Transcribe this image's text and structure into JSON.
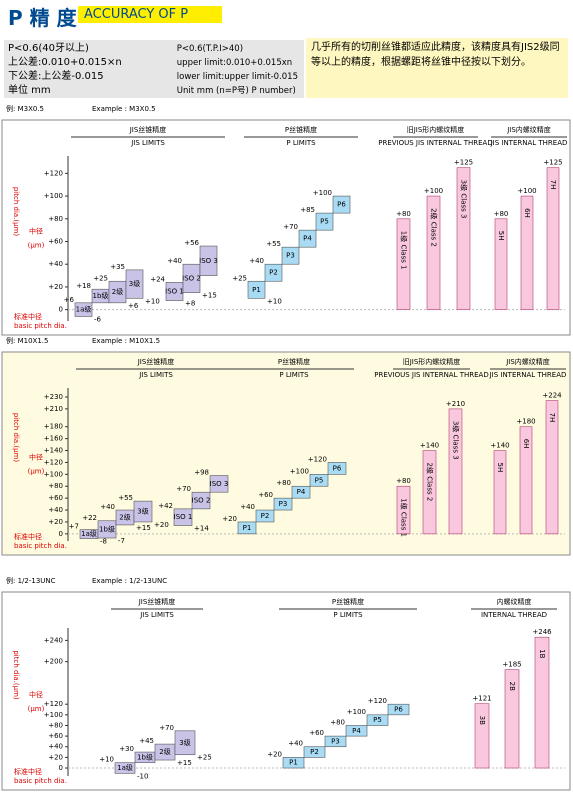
{
  "header": {
    "title": "P 精 度",
    "badge": "ACCURACY OF P"
  },
  "spec": {
    "cn": [
      "P<0.6(40牙以上)",
      "上公差:0.010+0.015×n",
      "下公差:上公差-0.015",
      "单位 mm"
    ],
    "en": [
      "P<0.6(T.P.I>40)",
      "upper limit:0.010+0.015xn",
      "lower limit:upper limit-0.015",
      "Unit mm (n=P号) P number)"
    ],
    "note": "几乎所有的切削丝锥都适应此精度，该精度具有JIS2级同等以上的精度，根据螺距将丝锥中径按以下划分。"
  },
  "chart_data": [
    {
      "type": "tolerance",
      "example_cn": "例: M3X0.5",
      "example_en": "Example : M3X0.5",
      "axis_title_cn": "中径",
      "axis_unit": "(μm)",
      "axis_title": "pitch dia.(μm)",
      "baseline_cn": "标准中径",
      "baseline_en": "basic pitch dia.",
      "ylim": [
        -10,
        130
      ],
      "yticks": [
        0,
        {
          "value": 20,
          "label": "+20"
        },
        {
          "value": 40,
          "label": "+40"
        },
        {
          "value": 60,
          "label": "+60"
        },
        {
          "value": 80,
          "label": "+80"
        },
        {
          "value": 100,
          "label": "+100"
        },
        {
          "value": 120,
          "label": "+120"
        }
      ],
      "groups": [
        {
          "title": "JIS丝锥精度",
          "subtitle": "JIS LIMITS",
          "color": "#c9c3e8",
          "boxes": [
            {
              "label": "1a级",
              "low": -6,
              "high": 6,
              "low_label": "-6",
              "high_label": "+6"
            },
            {
              "label": "1b级",
              "low": 6,
              "high": 18,
              "high_label": "+18"
            },
            {
              "label": "2级",
              "low": 6,
              "high": 25,
              "low_label": "+6",
              "high_label": "+25"
            },
            {
              "label": "3级",
              "low": 10,
              "high": 35,
              "low_label": "+10",
              "high_label": "+35"
            },
            {
              "label": "ISO 1",
              "low": 8,
              "high": 24,
              "low_label": "+8",
              "high_label": "+24"
            },
            {
              "label": "ISO 2",
              "low": 15,
              "high": 40,
              "low_label": "+15",
              "high_label": "+40"
            },
            {
              "label": "ISO 3",
              "low": 30,
              "high": 56,
              "high_label": "+56"
            }
          ]
        },
        {
          "title": "P丝锥精度",
          "subtitle": "P LIMITS",
          "color": "#a9dcf4",
          "boxes": [
            {
              "label": "P1",
              "low": 10,
              "high": 25,
              "low_label": "+10",
              "high_label": "+25"
            },
            {
              "label": "P2",
              "low": 25,
              "high": 40,
              "high_label": "+40"
            },
            {
              "label": "P3",
              "low": 40,
              "high": 55,
              "high_label": "+55"
            },
            {
              "label": "P4",
              "low": 55,
              "high": 70,
              "high_label": "+70"
            },
            {
              "label": "P5",
              "low": 70,
              "high": 85,
              "high_label": "+85"
            },
            {
              "label": "P6",
              "low": 85,
              "high": 100,
              "high_label": "+100"
            }
          ]
        },
        {
          "title": "旧JIS形内螺纹精度",
          "subtitle": "PREVIOUS JIS INTERNAL THREAD",
          "color": "#f9c8de",
          "boxes": [
            {
              "label": "1级 Class 1",
              "low": 0,
              "high": 80,
              "high_label": "+80"
            },
            {
              "label": "2级 Class 2",
              "low": 0,
              "high": 100,
              "high_label": "+100"
            },
            {
              "label": "3级 Class 3",
              "low": 0,
              "high": 125,
              "high_label": "+125"
            }
          ]
        },
        {
          "title": "JIS内螺纹精度",
          "subtitle": "JIS INTERNAL THREAD",
          "color": "#f9c8de",
          "boxes": [
            {
              "label": "5H",
              "low": 0,
              "high": 80,
              "high_label": "+80"
            },
            {
              "label": "6H",
              "low": 0,
              "high": 100,
              "high_label": "+100"
            },
            {
              "label": "7H",
              "low": 0,
              "high": 125,
              "high_label": "+125"
            }
          ]
        }
      ]
    },
    {
      "type": "tolerance",
      "example_cn": "例: M10X1.5",
      "example_en": "Example : M10X1.5",
      "axis_title_cn": "中径",
      "axis_unit": "(μm)",
      "axis_title": "pitch dia.(μm)",
      "baseline_cn": "标准中径",
      "baseline_en": "basic pitch dia.",
      "ylim": [
        -12,
        235
      ],
      "yticks": [
        0,
        {
          "value": 20,
          "label": "+20"
        },
        {
          "value": 40,
          "label": "+40"
        },
        {
          "value": 60,
          "label": "+60"
        },
        {
          "value": 80,
          "label": "+80"
        },
        {
          "value": 100,
          "label": "+100"
        },
        {
          "value": 120,
          "label": "+120"
        },
        {
          "value": 140,
          "label": "+140"
        },
        {
          "value": 160,
          "label": "+160"
        },
        {
          "value": 180,
          "label": "+180"
        },
        {
          "value": 210,
          "label": "+210"
        },
        {
          "value": 230,
          "label": "+230"
        }
      ],
      "groups": [
        {
          "title": "JIS丝锥精度",
          "subtitle": "JIS LIMITS",
          "color": "#c9c3e8",
          "boxes": [
            {
              "label": "1a级",
              "low": -8,
              "high": 7,
              "low_label": "-8",
              "high_label": "+7"
            },
            {
              "label": "1b级",
              "low": -7,
              "high": 22,
              "low_label": "-7",
              "high_label": "+22"
            },
            {
              "label": "2级",
              "low": 15,
              "high": 40,
              "low_label": "+15",
              "high_label": "+40"
            },
            {
              "label": "3级",
              "low": 20,
              "high": 55,
              "low_label": "+20",
              "high_label": "+55"
            },
            {
              "label": "ISO 1",
              "low": 14,
              "high": 42,
              "low_label": "+14",
              "high_label": "+42"
            },
            {
              "label": "ISO 2",
              "low": 42,
              "high": 70,
              "high_label": "+70"
            },
            {
              "label": "ISO 3",
              "low": 70,
              "high": 98,
              "high_label": "+98"
            }
          ]
        },
        {
          "title": "P丝锥精度",
          "subtitle": "P LIMITS",
          "color": "#a9dcf4",
          "boxes": [
            {
              "label": "P1",
              "low": 0,
              "high": 20,
              "high_label": "+20"
            },
            {
              "label": "P2",
              "low": 20,
              "high": 40,
              "high_label": "+40"
            },
            {
              "label": "P3",
              "low": 40,
              "high": 60,
              "high_label": "+60"
            },
            {
              "label": "P4",
              "low": 60,
              "high": 80,
              "high_label": "+80"
            },
            {
              "label": "P5",
              "low": 80,
              "high": 100,
              "high_label": "+100"
            },
            {
              "label": "P6",
              "low": 100,
              "high": 120,
              "high_label": "+120"
            }
          ]
        },
        {
          "title": "旧JIS形内螺纹精度",
          "subtitle": "PREVIOUS JIS INTERNAL THREAD",
          "color": "#f9c8de",
          "boxes": [
            {
              "label": "1级 Class 1",
              "low": 0,
              "high": 80,
              "high_label": "+80"
            },
            {
              "label": "2级 Class 2",
              "low": 0,
              "high": 140,
              "high_label": "+140"
            },
            {
              "label": "3级 Class 3",
              "low": 0,
              "high": 210,
              "high_label": "+210"
            }
          ]
        },
        {
          "title": "JIS内螺纹精度",
          "subtitle": "JIS INTERNAL THREAD",
          "color": "#f9c8de",
          "boxes": [
            {
              "label": "5H",
              "low": 0,
              "high": 140,
              "high_label": "+140"
            },
            {
              "label": "6H",
              "low": 0,
              "high": 180,
              "high_label": "+180"
            },
            {
              "label": "7H",
              "low": 0,
              "high": 224,
              "high_label": "+224"
            }
          ]
        }
      ]
    },
    {
      "type": "tolerance",
      "example_cn": "例: 1/2-13UNC",
      "example_en": "Example : 1/2-13UNC",
      "axis_title_cn": "中径",
      "axis_unit": "(μm)",
      "axis_title": "pitch dia.(μm)",
      "baseline_cn": "标准中径",
      "baseline_en": "basic pitch dia.",
      "ylim": [
        -15,
        252
      ],
      "yticks": [
        0,
        {
          "value": 20,
          "label": "+20"
        },
        {
          "value": 40,
          "label": "+40"
        },
        {
          "value": 60,
          "label": "+60"
        },
        {
          "value": 80,
          "label": "+80"
        },
        {
          "value": 100,
          "label": "+100"
        },
        {
          "value": 120,
          "label": "+120"
        },
        {
          "value": 200,
          "label": "+200"
        },
        {
          "value": 240,
          "label": "+240"
        }
      ],
      "groups": [
        {
          "title": "JIS丝锥精度",
          "subtitle": "JIS LIMITS",
          "color": "#c9c3e8",
          "boxes": [
            {
              "label": "1a级",
              "low": -10,
              "high": 10,
              "low_label": "-10",
              "high_label": "+10"
            },
            {
              "label": "1b级",
              "low": 10,
              "high": 30,
              "high_label": "+30"
            },
            {
              "label": "2级",
              "low": 15,
              "high": 45,
              "low_label": "+15",
              "high_label": "+45"
            },
            {
              "label": "3级",
              "low": 25,
              "high": 70,
              "low_label": "+25",
              "high_label": "+70"
            }
          ]
        },
        {
          "title": "P丝锥精度",
          "subtitle": "P LIMITS",
          "color": "#a9dcf4",
          "boxes": [
            {
              "label": "P1",
              "low": 0,
              "high": 20,
              "high_label": "+20"
            },
            {
              "label": "P2",
              "low": 20,
              "high": 40,
              "high_label": "+40"
            },
            {
              "label": "P3",
              "low": 40,
              "high": 60,
              "high_label": "+60"
            },
            {
              "label": "P4",
              "low": 60,
              "high": 80,
              "high_label": "+80"
            },
            {
              "label": "P5",
              "low": 80,
              "high": 100,
              "high_label": "+100"
            },
            {
              "label": "P6",
              "low": 100,
              "high": 120,
              "high_label": "+120"
            }
          ]
        },
        {
          "title": "内螺纹精度",
          "subtitle": "INTERNAL THREAD",
          "color": "#f9c8de",
          "boxes": [
            {
              "label": "3B",
              "low": 0,
              "high": 121,
              "high_label": "+121"
            },
            {
              "label": "2B",
              "low": 0,
              "high": 185,
              "high_label": "+185"
            },
            {
              "label": "1B",
              "low": 0,
              "high": 246,
              "high_label": "+246"
            }
          ]
        }
      ]
    }
  ]
}
